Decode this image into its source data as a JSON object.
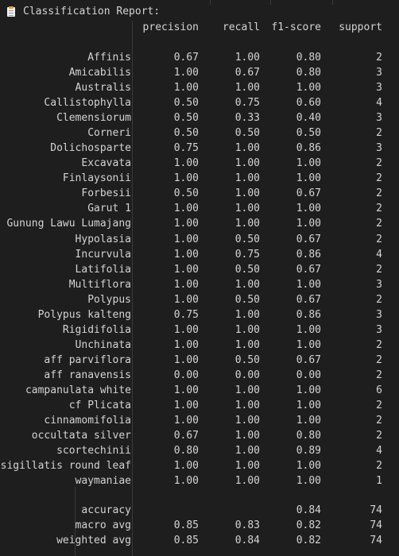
{
  "report": {
    "title": "Classification Report:",
    "headers": {
      "precision": "precision",
      "recall": "recall",
      "f1": "f1-score",
      "support": "support"
    },
    "rows": [
      {
        "label": "Affinis",
        "precision": "0.67",
        "recall": "1.00",
        "f1": "0.80",
        "support": "2"
      },
      {
        "label": "Amicabilis",
        "precision": "1.00",
        "recall": "0.67",
        "f1": "0.80",
        "support": "3"
      },
      {
        "label": "Australis",
        "precision": "1.00",
        "recall": "1.00",
        "f1": "1.00",
        "support": "3"
      },
      {
        "label": "Callistophylla",
        "precision": "0.50",
        "recall": "0.75",
        "f1": "0.60",
        "support": "4"
      },
      {
        "label": "Clemensiorum",
        "precision": "0.50",
        "recall": "0.33",
        "f1": "0.40",
        "support": "3"
      },
      {
        "label": "Corneri",
        "precision": "0.50",
        "recall": "0.50",
        "f1": "0.50",
        "support": "2"
      },
      {
        "label": "Dolichosparte",
        "precision": "0.75",
        "recall": "1.00",
        "f1": "0.86",
        "support": "3"
      },
      {
        "label": "Excavata",
        "precision": "1.00",
        "recall": "1.00",
        "f1": "1.00",
        "support": "2"
      },
      {
        "label": "Finlaysonii",
        "precision": "1.00",
        "recall": "1.00",
        "f1": "1.00",
        "support": "2"
      },
      {
        "label": "Forbesii",
        "precision": "0.50",
        "recall": "1.00",
        "f1": "0.67",
        "support": "2"
      },
      {
        "label": "Garut 1",
        "precision": "1.00",
        "recall": "1.00",
        "f1": "1.00",
        "support": "2"
      },
      {
        "label": "Gunung Lawu Lumajang",
        "precision": "1.00",
        "recall": "1.00",
        "f1": "1.00",
        "support": "2"
      },
      {
        "label": "Hypolasia",
        "precision": "1.00",
        "recall": "0.50",
        "f1": "0.67",
        "support": "2"
      },
      {
        "label": "Incurvula",
        "precision": "1.00",
        "recall": "0.75",
        "f1": "0.86",
        "support": "4"
      },
      {
        "label": "Latifolia",
        "precision": "1.00",
        "recall": "0.50",
        "f1": "0.67",
        "support": "2"
      },
      {
        "label": "Multiflora",
        "precision": "1.00",
        "recall": "1.00",
        "f1": "1.00",
        "support": "3"
      },
      {
        "label": "Polypus",
        "precision": "1.00",
        "recall": "0.50",
        "f1": "0.67",
        "support": "2"
      },
      {
        "label": "Polypus kalteng",
        "precision": "0.75",
        "recall": "1.00",
        "f1": "0.86",
        "support": "3"
      },
      {
        "label": "Rigidifolia",
        "precision": "1.00",
        "recall": "1.00",
        "f1": "1.00",
        "support": "3"
      },
      {
        "label": "Unchinata",
        "precision": "1.00",
        "recall": "1.00",
        "f1": "1.00",
        "support": "2"
      },
      {
        "label": "aff parviflora",
        "precision": "1.00",
        "recall": "0.50",
        "f1": "0.67",
        "support": "2"
      },
      {
        "label": "aff ranavensis",
        "precision": "0.00",
        "recall": "0.00",
        "f1": "0.00",
        "support": "2"
      },
      {
        "label": "campanulata white",
        "precision": "1.00",
        "recall": "1.00",
        "f1": "1.00",
        "support": "6"
      },
      {
        "label": "cf Plicata",
        "precision": "1.00",
        "recall": "1.00",
        "f1": "1.00",
        "support": "2"
      },
      {
        "label": "cinnamomifolia",
        "precision": "1.00",
        "recall": "1.00",
        "f1": "1.00",
        "support": "2"
      },
      {
        "label": "occultata silver",
        "precision": "0.67",
        "recall": "1.00",
        "f1": "0.80",
        "support": "2"
      },
      {
        "label": "scortechinii",
        "precision": "0.80",
        "recall": "1.00",
        "f1": "0.89",
        "support": "4"
      },
      {
        "label": "sigillatis round leaf",
        "precision": "1.00",
        "recall": "1.00",
        "f1": "1.00",
        "support": "2"
      },
      {
        "label": "waymaniae",
        "precision": "1.00",
        "recall": "1.00",
        "f1": "1.00",
        "support": "1"
      }
    ],
    "summary": [
      {
        "label": "accuracy",
        "precision": "",
        "recall": "",
        "f1": "0.84",
        "support": "74"
      },
      {
        "label": "macro avg",
        "precision": "0.85",
        "recall": "0.83",
        "f1": "0.82",
        "support": "74"
      },
      {
        "label": "weighted avg",
        "precision": "0.85",
        "recall": "0.84",
        "f1": "0.82",
        "support": "74"
      }
    ]
  },
  "theme": {
    "background": "#1e1e1e",
    "text": "#d4d4d4",
    "gridline": "#3a3a3a",
    "icon": "notebook-icon"
  }
}
